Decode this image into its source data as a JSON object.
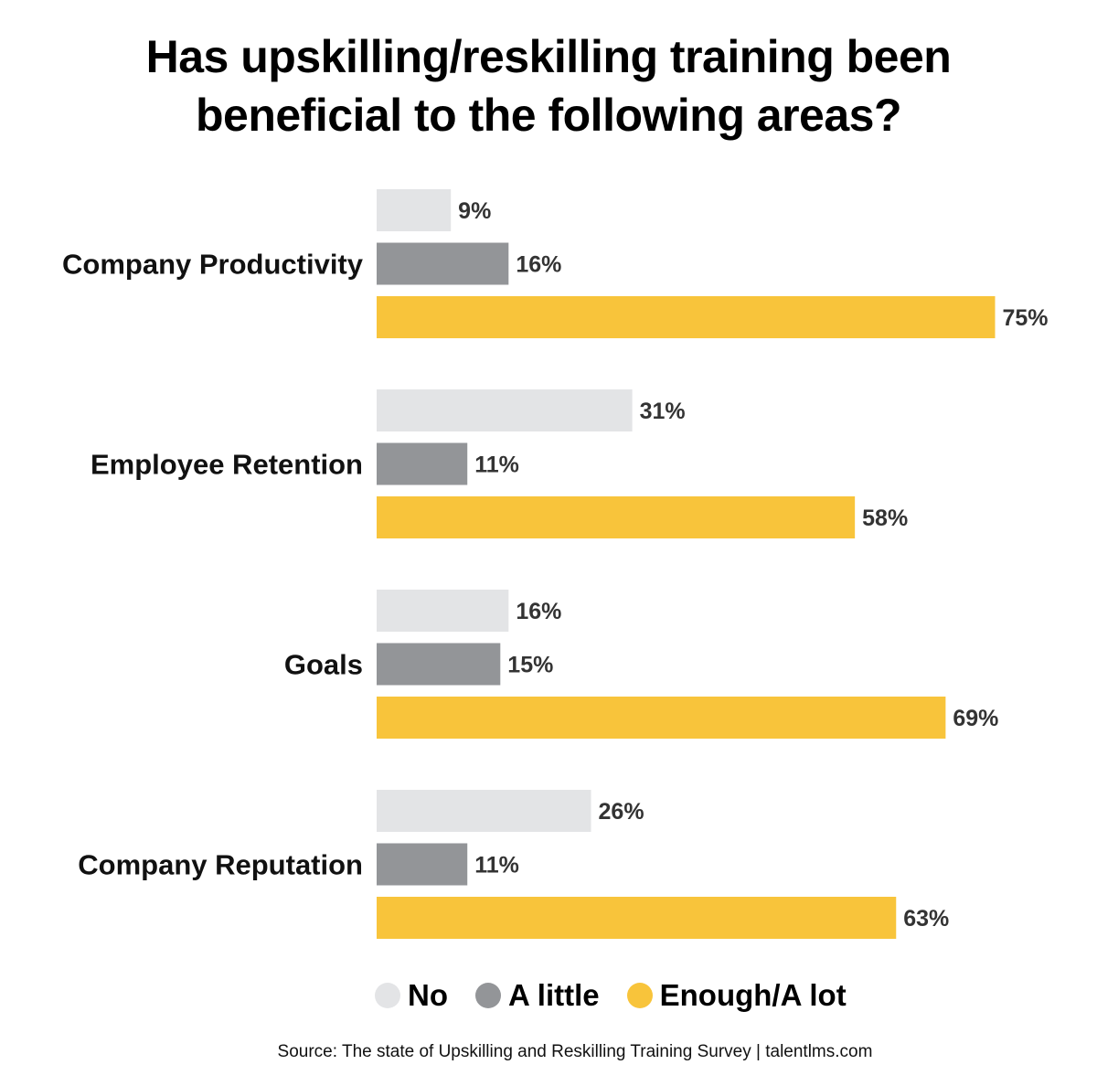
{
  "title_line1": "Has upskilling/reskilling training been",
  "title_line2": "beneficial to the following areas?",
  "source": "Source: The state of Upskilling and Reskilling Training Survey | talentlms.com",
  "colors": {
    "No": "#e3e4e6",
    "A little": "#939598",
    "Enough/A lot": "#f8c43b"
  },
  "chart_data": {
    "type": "bar",
    "orientation": "horizontal",
    "categories": [
      "Company Productivity",
      "Employee Retention",
      "Goals",
      "Company Reputation"
    ],
    "series": [
      {
        "name": "No",
        "values": [
          9,
          31,
          16,
          26
        ],
        "labels": [
          "9%",
          "31%",
          "16%",
          "26%"
        ]
      },
      {
        "name": "A little",
        "values": [
          16,
          11,
          15,
          11
        ],
        "labels": [
          "16%",
          "11%",
          "15%",
          "11%"
        ]
      },
      {
        "name": "Enough/A lot",
        "values": [
          75,
          58,
          69,
          63
        ],
        "labels": [
          "75%",
          "58%",
          "69%",
          "63%"
        ]
      }
    ],
    "title": "Has upskilling/reskilling training been beneficial to the following areas?",
    "legend_position": "bottom",
    "grid": false
  }
}
